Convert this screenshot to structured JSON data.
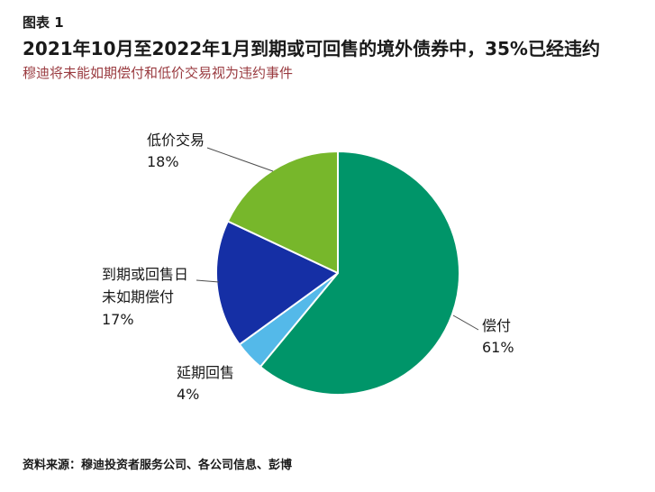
{
  "header": {
    "exhibit_label": "图表 1",
    "title": "2021年10月至2022年1月到期或可回售的境外债券中，35%已经违约",
    "subtitle": "穆迪将未能如期偿付和低价交易视为违约事件",
    "subtitle_color": "#9a3b40"
  },
  "chart_data": {
    "type": "pie",
    "title": "2021年10月至2022年1月到期或可回售的境外债券中，35%已经违约",
    "subtitle": "穆迪将未能如期偿付和低价交易视为违约事件",
    "start_angle_deg": 0,
    "direction": "clockwise",
    "legend_position": "callout-labels",
    "slices": [
      {
        "label": "偿付",
        "value": 61,
        "pct": "61%",
        "color": "#009569"
      },
      {
        "label": "延期回售",
        "value": 4,
        "pct": "4%",
        "color": "#54b9e9"
      },
      {
        "label": "到期或回售日未如期偿付",
        "value": 17,
        "pct": "17%",
        "color": "#152fa5"
      },
      {
        "label": "低价交易",
        "value": 18,
        "pct": "18%",
        "color": "#77b72b"
      }
    ]
  },
  "callouts": {
    "repay": {
      "lines": [
        "偿付",
        "61%"
      ]
    },
    "deferred": {
      "lines": [
        "延期回售",
        "4%"
      ]
    },
    "missed": {
      "lines": [
        "到期或回售日",
        "未如期偿付",
        "17%"
      ]
    },
    "distressed": {
      "lines": [
        "低价交易",
        "18%"
      ]
    }
  },
  "source": "资料来源：穆迪投资者服务公司、各公司信息、彭博"
}
